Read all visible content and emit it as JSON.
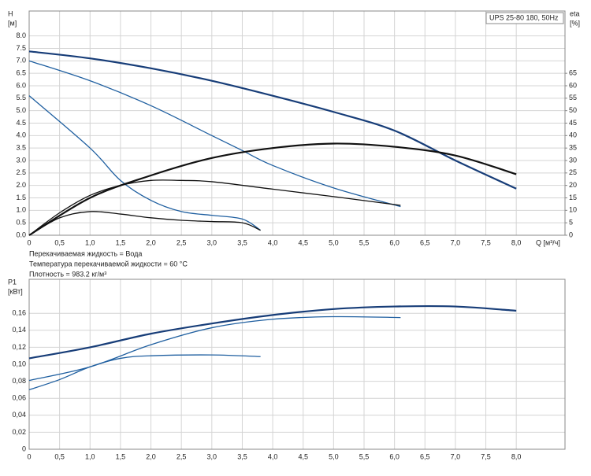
{
  "chart_data": [
    {
      "type": "line",
      "legend": "UPS 25-80 180, 50Hz",
      "ylabel": "H",
      "yunit": "[м]",
      "y2label": "eta",
      "y2unit": "[%]",
      "xlabel": "Q [м³/ч]",
      "annotations": [
        "Перекачиваемая жидкость = Вода",
        "Температура перекачиваемой жидкости = 60 °C",
        "Плотность = 983.2 кг/м³"
      ],
      "xlim": [
        0,
        8.8
      ],
      "ylim": [
        0,
        9
      ],
      "y2lim": [
        0,
        90
      ],
      "xticks": [
        0,
        {
          "value": 0.5,
          "label": "0,5"
        },
        {
          "value": 1,
          "label": "1,0"
        },
        {
          "value": 1.5,
          "label": "1,5"
        },
        {
          "value": 2,
          "label": "2,0"
        },
        {
          "value": 2.5,
          "label": "2,5"
        },
        {
          "value": 3,
          "label": "3,0"
        },
        {
          "value": 3.5,
          "label": "3,5"
        },
        {
          "value": 4,
          "label": "4,0"
        },
        {
          "value": 4.5,
          "label": "4,5"
        },
        {
          "value": 5,
          "label": "5,0"
        },
        {
          "value": 5.5,
          "label": "5,5"
        },
        {
          "value": 6,
          "label": "6,0"
        },
        {
          "value": 6.5,
          "label": "6,5"
        },
        {
          "value": 7,
          "label": "7,0"
        },
        {
          "value": 7.5,
          "label": "7,5"
        },
        {
          "value": 8,
          "label": "8,0"
        }
      ],
      "yticks": [
        {
          "value": 0,
          "label": "0.0"
        },
        0.5,
        {
          "value": 1,
          "label": "1.0"
        },
        1.5,
        {
          "value": 2,
          "label": "2.0"
        },
        2.5,
        {
          "value": 3,
          "label": "3.0"
        },
        3.5,
        {
          "value": 4,
          "label": "4.0"
        },
        4.5,
        {
          "value": 5,
          "label": "5.0"
        },
        5.5,
        {
          "value": 6,
          "label": "6.0"
        },
        6.5,
        {
          "value": 7,
          "label": "7.0"
        },
        7.5,
        {
          "value": 8,
          "label": "8.0"
        }
      ],
      "y2ticks": [
        0,
        5,
        10,
        15,
        20,
        25,
        30,
        35,
        40,
        45,
        50,
        55,
        60,
        65
      ],
      "series": [
        {
          "color": "#173d78",
          "x": [
            0,
            1,
            2,
            3,
            4,
            5,
            6,
            7,
            8
          ],
          "values": [
            7.38,
            7.1,
            6.7,
            6.2,
            5.6,
            4.95,
            4.2,
            3.0,
            1.87
          ]
        },
        {
          "color": "#1f5fa0",
          "x": [
            0,
            1,
            2,
            3,
            3.5,
            4,
            5,
            6.1
          ],
          "values": [
            7.0,
            6.2,
            5.2,
            4.0,
            3.4,
            2.8,
            1.9,
            1.15
          ]
        },
        {
          "color": "#1f5fa0",
          "x": [
            0,
            1,
            1.5,
            2,
            2.5,
            3,
            3.5,
            3.8
          ],
          "values": [
            5.6,
            3.5,
            2.2,
            1.4,
            0.95,
            0.8,
            0.65,
            0.2
          ]
        },
        {
          "color": "#111111",
          "axis": "y2",
          "x": [
            0,
            1,
            2,
            3,
            4,
            5,
            6,
            7,
            8
          ],
          "values": [
            0,
            15,
            24,
            31,
            35,
            36.8,
            35.5,
            32,
            24.5
          ]
        },
        {
          "color": "#111111",
          "axis": "y2",
          "x": [
            0,
            0.5,
            1,
            1.5,
            2,
            2.5,
            3,
            4,
            5,
            6.1
          ],
          "values": [
            0,
            9,
            16,
            20,
            22,
            22,
            21.5,
            18.5,
            15.5,
            12
          ]
        },
        {
          "color": "#111111",
          "axis": "y2",
          "x": [
            0,
            0.5,
            1,
            1.5,
            2,
            2.5,
            3,
            3.5,
            3.8
          ],
          "values": [
            0,
            7,
            9.5,
            8.5,
            7,
            6,
            5.5,
            5,
            2
          ]
        }
      ]
    },
    {
      "type": "line",
      "ylabel": "P1",
      "yunit": "[кВт]",
      "xlim": [
        0,
        8.8
      ],
      "ylim": [
        0,
        0.2
      ],
      "xticks": [
        0,
        {
          "value": 0.5,
          "label": "0,5"
        },
        {
          "value": 1,
          "label": "1,0"
        },
        {
          "value": 1.5,
          "label": "1,5"
        },
        {
          "value": 2,
          "label": "2,0"
        },
        {
          "value": 2.5,
          "label": "2,5"
        },
        {
          "value": 3,
          "label": "3,0"
        },
        {
          "value": 3.5,
          "label": "3,5"
        },
        {
          "value": 4,
          "label": "4,0"
        },
        {
          "value": 4.5,
          "label": "4,5"
        },
        {
          "value": 5,
          "label": "5,0"
        },
        {
          "value": 5.5,
          "label": "5,5"
        },
        {
          "value": 6,
          "label": "6,0"
        },
        {
          "value": 6.5,
          "label": "6,5"
        },
        {
          "value": 7,
          "label": "7,0"
        },
        {
          "value": 7.5,
          "label": "7,5"
        },
        {
          "value": 8,
          "label": "8,0"
        }
      ],
      "yticks": [
        0,
        {
          "value": 0.02,
          "label": "0,02"
        },
        {
          "value": 0.04,
          "label": "0,04"
        },
        {
          "value": 0.06,
          "label": "0,06"
        },
        {
          "value": 0.08,
          "label": "0,08"
        },
        {
          "value": 0.1,
          "label": "0,10"
        },
        {
          "value": 0.12,
          "label": "0,12"
        },
        {
          "value": 0.14,
          "label": "0,14"
        },
        {
          "value": 0.16,
          "label": "0,16"
        }
      ],
      "series": [
        {
          "color": "#173d78",
          "x": [
            0,
            1,
            2,
            3,
            4,
            5,
            6,
            7,
            8
          ],
          "values": [
            0.107,
            0.12,
            0.136,
            0.148,
            0.158,
            0.165,
            0.168,
            0.168,
            0.163
          ]
        },
        {
          "color": "#1f5fa0",
          "x": [
            0,
            1,
            2,
            3,
            4,
            5,
            6.1
          ],
          "values": [
            0.081,
            0.097,
            0.123,
            0.143,
            0.153,
            0.156,
            0.155
          ]
        },
        {
          "color": "#1f5fa0",
          "x": [
            0,
            0.5,
            1,
            1.5,
            2,
            3,
            3.8
          ],
          "values": [
            0.07,
            0.082,
            0.097,
            0.107,
            0.11,
            0.111,
            0.109
          ]
        }
      ]
    }
  ]
}
